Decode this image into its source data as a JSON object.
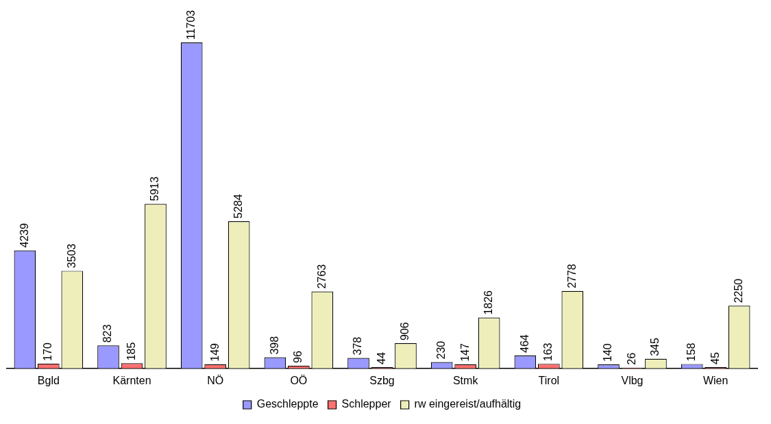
{
  "chart_data": {
    "type": "bar",
    "categories": [
      "Bgld",
      "Kärnten",
      "NÖ",
      "OÖ",
      "Szbg",
      "Stmk",
      "Tirol",
      "Vlbg",
      "Wien"
    ],
    "series": [
      {
        "name": "Geschleppte",
        "color": "#9999ff",
        "values": [
          4239,
          823,
          11703,
          398,
          378,
          230,
          464,
          140,
          158
        ]
      },
      {
        "name": "Schlepper",
        "color": "#ff7070",
        "values": [
          170,
          185,
          149,
          96,
          44,
          147,
          163,
          26,
          45
        ]
      },
      {
        "name": "rw eingereist/aufhältig",
        "color": "#eeeebb",
        "values": [
          3503,
          5913,
          5284,
          2763,
          906,
          1826,
          2778,
          345,
          2250
        ]
      }
    ],
    "data_labels": true,
    "legend": "bottom",
    "grid": false
  }
}
